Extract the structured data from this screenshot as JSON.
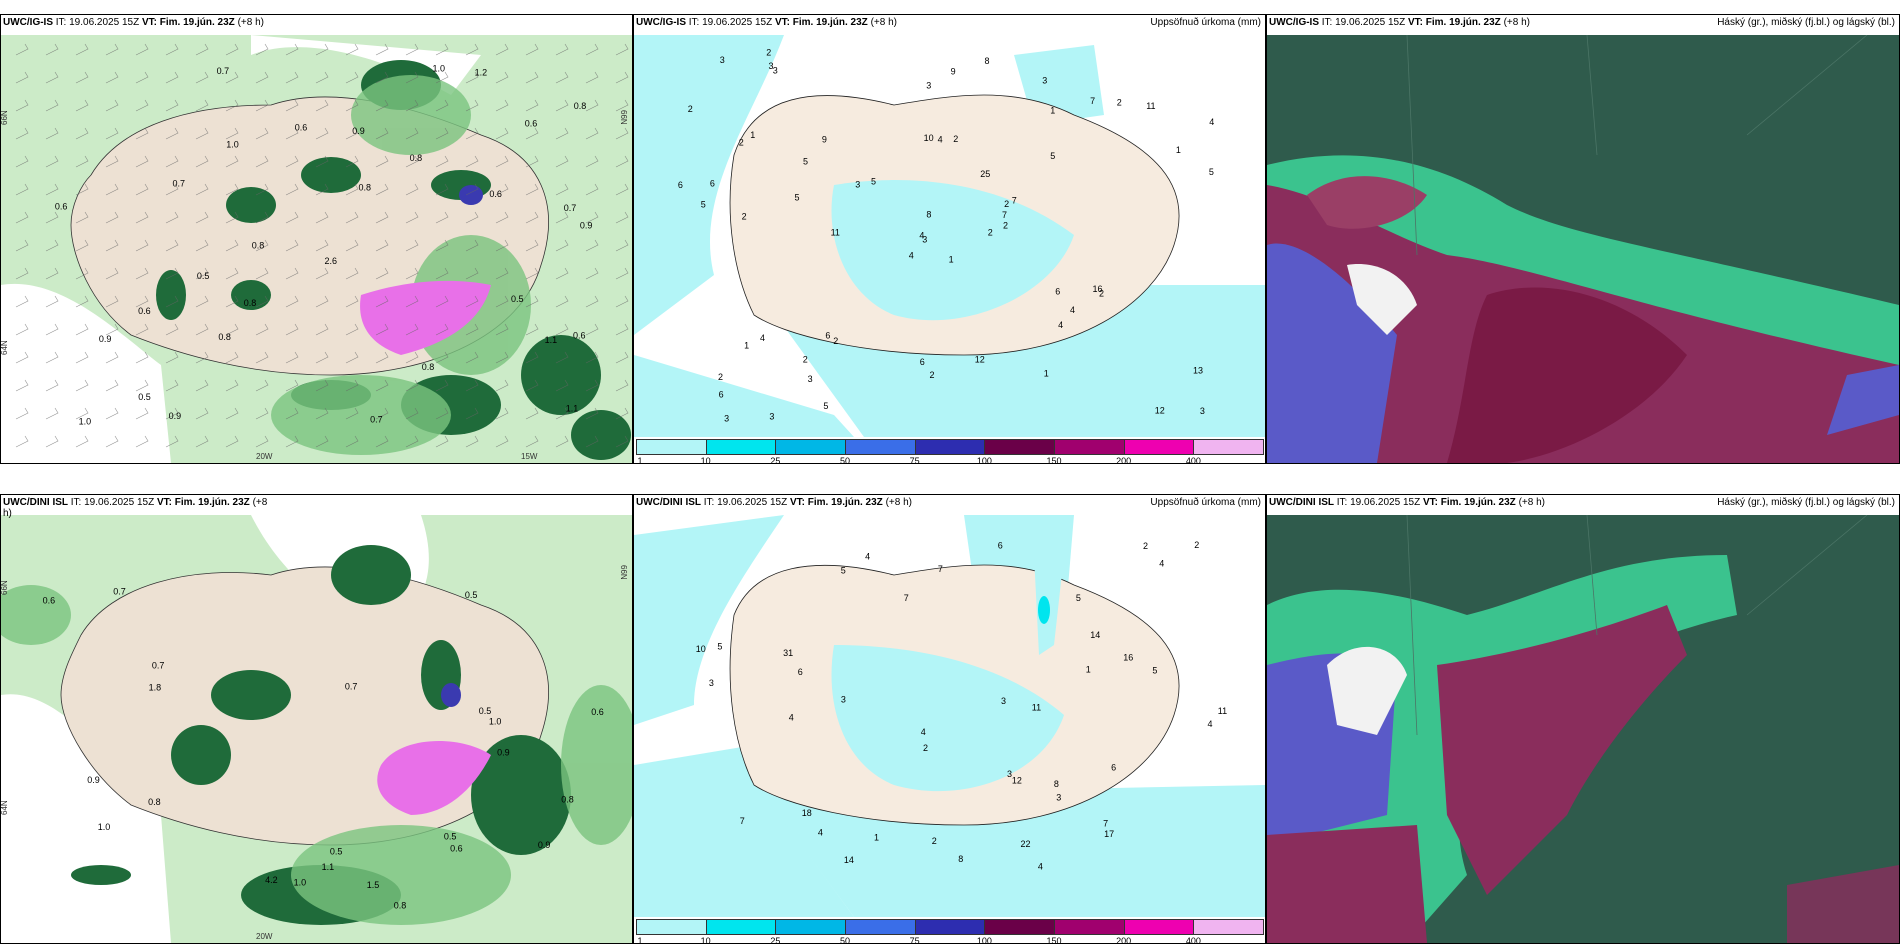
{
  "panels": {
    "wind_top": {
      "model": "UWC/IG-IS",
      "it": "IT: 19.06.2025 15Z",
      "vt": "VT: Fim. 19.jún. 23Z",
      "lead": "(+8 h)"
    },
    "precip_top": {
      "model": "UWC/IG-IS",
      "it": "IT: 19.06.2025 15Z",
      "vt": "VT: Fim. 19.jún. 23Z",
      "lead": "(+8 h)",
      "right": "Uppsöfnuð úrkoma (mm)"
    },
    "cloud_top": {
      "model": "UWC/IG-IS",
      "it": "IT: 19.06.2025 15Z",
      "vt": "VT: Fim. 19.jún. 23Z",
      "lead": "(+8 h)",
      "right": "Háský (gr.), miðský (fj.bl.) og lágský (bl.)"
    },
    "wind_bottom": {
      "model": "UWC/DINI ISL",
      "it": "IT: 19.06.2025 15Z",
      "vt": "VT: Fim. 19.jún. 23Z",
      "lead": "(+8",
      "lead2": "h)"
    },
    "precip_bottom": {
      "model": "UWC/DINI ISL",
      "it": "IT: 19.06.2025 15Z",
      "vt": "VT: Fim. 19.jún. 23Z",
      "lead": "(+8 h)",
      "right": "Uppsöfnuð úrkoma (mm)"
    },
    "cloud_bottom": {
      "model": "UWC/DINI ISL",
      "it": "IT: 19.06.2025 15Z",
      "vt": "VT: Fim. 19.jún. 23Z",
      "lead": "(+8 h)",
      "right": "Háský (gr.), miðský (fj.bl.) og lágský (bl.)"
    }
  },
  "axis_labels": {
    "lat66": "66N",
    "lat65": "65N",
    "lat64": "64N",
    "lon20": "20W",
    "lon15": "15W"
  },
  "colorbar": {
    "ticks": [
      "1",
      "10",
      "25",
      "50",
      "75",
      "100",
      "150",
      "200",
      "400"
    ],
    "colors": [
      "#b3f5f7",
      "#00e5ee",
      "#00b7e6",
      "#3a6ee8",
      "#2d2db0",
      "#6a0048",
      "#a0006e",
      "#ee00b0",
      "#f0b4f0"
    ]
  },
  "precip_top_values": [
    "1",
    "2",
    "3",
    "2",
    "2",
    "2",
    "3",
    "2",
    "1",
    "2",
    "3",
    "3",
    "2",
    "4",
    "4",
    "5",
    "3",
    "10",
    "25",
    "4",
    "5",
    "6",
    "3",
    "4",
    "7",
    "2",
    "1",
    "3",
    "5",
    "6",
    "5",
    "4",
    "6",
    "8",
    "9",
    "7",
    "6",
    "12",
    "13",
    "16",
    "8",
    "3",
    "5",
    "4",
    "5",
    "6",
    "7",
    "3",
    "2",
    "2",
    "1",
    "1",
    "2",
    "4",
    "1",
    "2",
    "3",
    "3",
    "12",
    "11",
    "9",
    "11",
    "6",
    "5",
    "2",
    "2"
  ],
  "precip_bottom_values": [
    "4",
    "5",
    "18",
    "31",
    "16",
    "22",
    "4",
    "3",
    "2",
    "4",
    "7",
    "10",
    "4",
    "3",
    "1",
    "2",
    "3",
    "4",
    "6",
    "5",
    "7",
    "12",
    "14",
    "17",
    "11",
    "14",
    "4",
    "6",
    "8",
    "7",
    "3",
    "2",
    "5",
    "1",
    "4",
    "2",
    "6",
    "5",
    "11",
    "8",
    "7",
    "3"
  ],
  "wind_top_values": [
    "1.0",
    "0.7",
    "0.8",
    "0.9",
    "0.8",
    "0.6",
    "0.8",
    "1.0",
    "1.1",
    "0.6",
    "0.7",
    "0.5",
    "0.6",
    "0.8",
    "0.9",
    "2.6",
    "0.5",
    "0.6",
    "0.7",
    "0.6",
    "1.1",
    "0.9",
    "0.5",
    "0.6",
    "0.8",
    "1.2",
    "1.0",
    "0.8",
    "0.7",
    "0.8",
    "0.9"
  ],
  "wind_bottom_values": [
    "4.2",
    "0.5",
    "0.7",
    "0.6",
    "0.6",
    "1.0",
    "1.1",
    "0.9",
    "0.5",
    "0.7",
    "0.8",
    "0.9",
    "1.0",
    "0.8",
    "0.5",
    "1.5",
    "0.5",
    "0.6",
    "0.8",
    "1.0",
    "0.7",
    "0.9",
    "1.8"
  ]
}
